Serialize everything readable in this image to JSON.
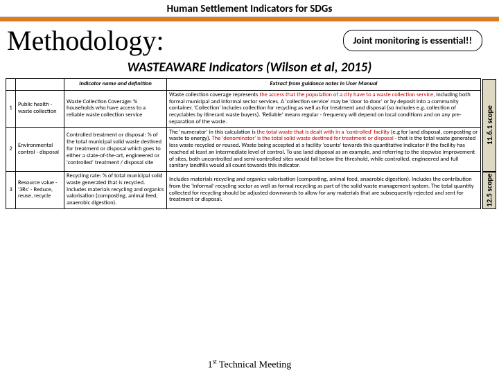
{
  "header": {
    "title": "Human Settlement Indicators for SDGs",
    "methodology": "Methodology:",
    "joint": "Joint monitoring is essential!!",
    "subhead": "WASTEAWARE Indicators (Wilson et al, 2015)"
  },
  "table": {
    "headers": {
      "indicator": "Indicator name and definition",
      "extract": "Extract from guidance notes in User Manual"
    },
    "rows": [
      {
        "num": "1",
        "cat": "Public health - waste collection",
        "ind": "Waste Collection Coverage: % households who have access to a reliable waste collection service",
        "ext_pre": "Waste collection coverage represents ",
        "ext_hl": "the access that the population of a city have to a waste collection service",
        "ext_post": ", including both formal municipal and informal sector services. A 'collection service' may be 'door to door' or by deposit into a community container. 'Collection' includes collection for recycling as well as for treatment and disposal (so includes e.g. collection of recyclables by itinerant waste buyers). 'Reliable' means regular - frequency will depend on local conditions and on any pre-separation of the waste."
      },
      {
        "num": "2",
        "cat": "Environmental control - disposal",
        "ind": "Controlled treatment or disposal: % of the total municipal solid waste destined for treatment or disposal which goes to either a state-of-the-art, engineered or 'controlled' treatment / disposal site",
        "ext_pre": "The 'numerator' in this calculation is ",
        "ext_hl": "the total waste that is dealt with in a 'controlled' facility",
        "ext_mid": " (e.g for land disposal, composting or waste to energy). ",
        "ext_hl2": "The 'denominator' is the total solid waste destined for treatment or disposal",
        "ext_post": " - that is the total waste generated less waste recycled or reused.\nWaste being accepted at a facility 'counts' towards this quantitative indicator if the facility has reached at least an intermediate level of control. To use land disposal as an example, and referring to the stepwise improvement of sites, both uncontrolled and semi-controlled sites would fall below the threshold, while controlled, engineered and full sanitary landfills would all count towards this indicator."
      },
      {
        "num": "3",
        "cat": "Resource value - '3Rs' - Reduce, reuse, recycle",
        "ind": "Recycling rate: % of total municipal solid waste generated that is recycled. Includes materials recycling and organics valorisation (composting, animal feed, anaerobic digestion).",
        "ext": "Includes materials recycling and organics valorisation (composting, animal feed, anaerobic digestion). Includes the contribution from the 'informal' recycling sector as well as formal recycling as part of the solid waste management system. The total quantity collected for recycling should be adjusted downwards to allow for any materials that are subsequently rejected and sent for treatment or disposal."
      }
    ]
  },
  "scopes": {
    "top": "11.6.1 scope",
    "bottom": "12.5 scope"
  },
  "footer": "1st Technical Meeting",
  "colors": {
    "orange": "#e67817",
    "red": "#c00000",
    "scope_bg": "#ddd9c3"
  }
}
